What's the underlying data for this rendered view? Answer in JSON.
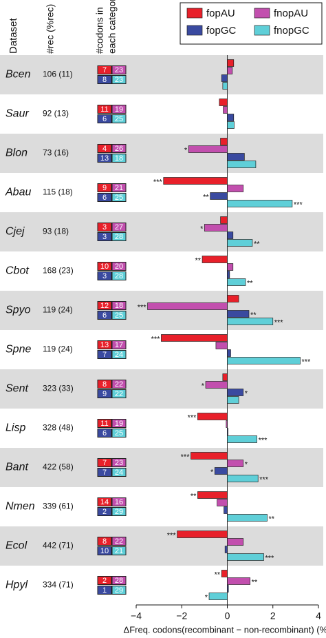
{
  "chart_data": {
    "type": "bar",
    "orientation": "horizontal",
    "headers": {
      "dataset": "Dataset",
      "rec": "#rec (%rec)",
      "codons": [
        "#codons in",
        "each category"
      ]
    },
    "categories": [
      "Bcen",
      "Saur",
      "Blon",
      "Abau",
      "Cjej",
      "Cbot",
      "Spyo",
      "Spne",
      "Sent",
      "Lisp",
      "Bant",
      "Nmen",
      "Ecol",
      "Hpyl"
    ],
    "rec": [
      "106 (11)",
      "92 (13)",
      "73 (16)",
      "115 (18)",
      "93 (18)",
      "168 (23)",
      "119 (24)",
      "119 (24)",
      "323 (33)",
      "328 (48)",
      "422 (58)",
      "339 (61)",
      "442 (71)",
      "334 (71)"
    ],
    "series": [
      {
        "name": "fopAU",
        "color": "#e8202a",
        "values": [
          0.28,
          -0.35,
          -0.3,
          -2.8,
          -0.3,
          -1.1,
          0.5,
          -2.9,
          -0.2,
          -1.3,
          -1.6,
          -1.3,
          -2.2,
          -0.25
        ],
        "annotations": [
          null,
          null,
          null,
          "***",
          null,
          "**",
          null,
          "***",
          null,
          "***",
          "***",
          "**",
          "***",
          "**"
        ],
        "codons": [
          7,
          11,
          4,
          9,
          3,
          10,
          12,
          13,
          8,
          11,
          7,
          14,
          8,
          2
        ]
      },
      {
        "name": "fnopAU",
        "color": "#c24fae",
        "values": [
          0.22,
          -0.18,
          -1.7,
          0.7,
          -1.0,
          0.25,
          -3.5,
          -0.5,
          -0.95,
          -0.05,
          0.7,
          -0.45,
          0.7,
          1.0
        ],
        "annotations": [
          null,
          null,
          "*",
          null,
          "*",
          null,
          "***",
          null,
          "*",
          null,
          "*",
          null,
          null,
          "**"
        ],
        "codons": [
          23,
          19,
          26,
          21,
          27,
          20,
          18,
          17,
          22,
          19,
          23,
          16,
          22,
          28
        ]
      },
      {
        "name": "fopGC",
        "color": "#3a4aa0",
        "values": [
          -0.25,
          0.28,
          0.75,
          -0.75,
          0.25,
          0.1,
          0.95,
          0.15,
          0.7,
          0.03,
          -0.55,
          -0.15,
          -0.1,
          0.05
        ],
        "annotations": [
          null,
          null,
          null,
          "**",
          null,
          null,
          "**",
          null,
          "*",
          null,
          "*",
          null,
          null,
          null
        ],
        "codons": [
          8,
          6,
          13,
          6,
          3,
          3,
          6,
          7,
          9,
          6,
          7,
          2,
          10,
          1
        ]
      },
      {
        "name": "fnopGC",
        "color": "#5fcfd8",
        "values": [
          -0.2,
          0.3,
          1.25,
          2.85,
          1.1,
          0.8,
          2.0,
          3.2,
          0.5,
          1.3,
          1.35,
          1.75,
          1.6,
          -0.8
        ],
        "annotations": [
          null,
          null,
          null,
          "***",
          "**",
          "**",
          "***",
          "***",
          null,
          "***",
          "***",
          "**",
          "***",
          "*"
        ],
        "codons": [
          23,
          25,
          18,
          25,
          28,
          28,
          25,
          24,
          22,
          25,
          24,
          29,
          21,
          29
        ]
      }
    ],
    "xlim": [
      -4,
      4
    ],
    "xticks": [
      {
        "value": -4,
        "label": "−4"
      },
      {
        "value": -2,
        "label": "−2"
      },
      0,
      2,
      4
    ],
    "xlabel": "ΔFreq. codons(recombinant − non-recombinant) (%)"
  }
}
